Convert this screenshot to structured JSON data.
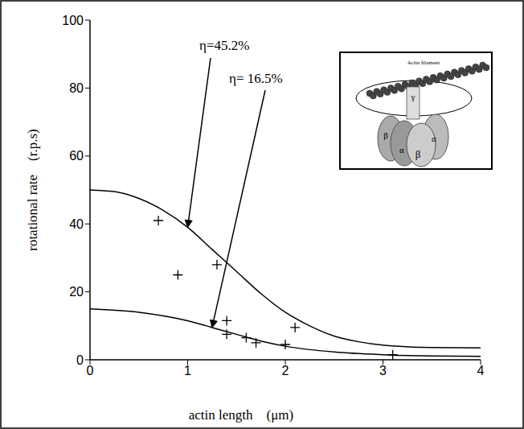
{
  "chart_data": {
    "type": "scatter",
    "x_label": "actin length    (μm)",
    "y_label": "rotational rate    (r.p.s)",
    "xlim": [
      0,
      4
    ],
    "ylim": [
      0,
      100
    ],
    "xticks": [
      0,
      1,
      2,
      3,
      4
    ],
    "yticks": [
      0,
      20,
      40,
      60,
      80,
      100
    ],
    "points": {
      "marker": "plus",
      "color": "#000000",
      "x": [
        0.7,
        0.9,
        1.3,
        1.4,
        1.4,
        1.6,
        1.7,
        2.0,
        2.1,
        3.1
      ],
      "values": [
        41,
        25,
        28,
        11.5,
        7.5,
        6.5,
        5,
        4.5,
        9.5,
        1.5
      ]
    },
    "series": [
      {
        "type": "line",
        "color": "#000000",
        "label": "η=45.2%",
        "x": [
          0,
          0.25,
          0.5,
          0.75,
          1,
          1.25,
          1.5,
          1.75,
          2,
          2.25,
          2.5,
          2.75,
          3,
          3.5,
          4
        ],
        "values": [
          50,
          49.5,
          47.5,
          44,
          39,
          32.5,
          26,
          19.5,
          14,
          10,
          7,
          5.3,
          4.3,
          3.6,
          3.5
        ]
      },
      {
        "type": "line",
        "color": "#000000",
        "label": "η= 16.5%",
        "x": [
          0,
          0.5,
          1,
          1.25,
          1.5,
          1.75,
          2,
          2.5,
          3,
          3.5,
          4
        ],
        "values": [
          15,
          14,
          11.5,
          9.5,
          7.5,
          5.5,
          4,
          2.3,
          1.5,
          1.1,
          1.0
        ]
      }
    ],
    "inset": {
      "labels": [
        "Actin filament",
        "γ",
        "β",
        "α",
        "β",
        "α"
      ]
    }
  }
}
